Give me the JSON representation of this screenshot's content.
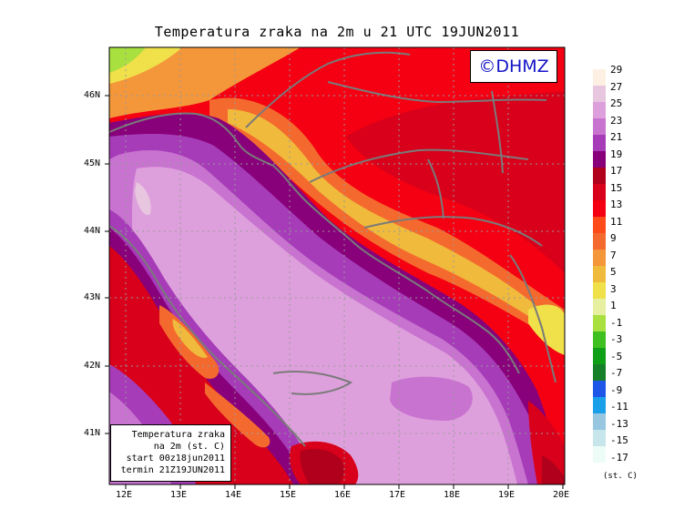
{
  "title": "Temperatura zraka na 2m u 21 UTC 19JUN2011",
  "copyright": "©DHMZ",
  "info_box": {
    "line1": "Temperatura zraka",
    "line2": "na 2m (st. C)",
    "line3": "start 00z18jun2011",
    "line4": "termin 21Z19JUN2011"
  },
  "axes": {
    "x_ticks": [
      "12E",
      "13E",
      "14E",
      "15E",
      "16E",
      "17E",
      "18E",
      "19E",
      "20E"
    ],
    "y_ticks": [
      "46N",
      "45N",
      "44N",
      "43N",
      "42N",
      "41N"
    ]
  },
  "legend": {
    "unit": "(st. C)",
    "labels": [
      "29",
      "27",
      "25",
      "23",
      "21",
      "19",
      "17",
      "15",
      "13",
      "11",
      "9",
      "7",
      "5",
      "3",
      "1",
      "-1",
      "-3",
      "-5",
      "-7",
      "-9",
      "-11",
      "-13",
      "-15",
      "-17"
    ],
    "colors": [
      "#fdf0e2",
      "#e8c6e0",
      "#dea0dc",
      "#c873d0",
      "#a63cb8",
      "#88007a",
      "#b0001c",
      "#d8001a",
      "#f40012",
      "#ff4a1a",
      "#f46a2e",
      "#f4963a",
      "#f0ba3c",
      "#f0e04a",
      "#e6f0a0",
      "#a8e040",
      "#3ec020",
      "#10a018",
      "#168028",
      "#1e56e8",
      "#1aa0e8",
      "#96c6e0",
      "#c6e6ec",
      "#eefcf8"
    ]
  },
  "colors": {
    "sea": "#dea0dc",
    "coast": "#7a7a7a"
  }
}
